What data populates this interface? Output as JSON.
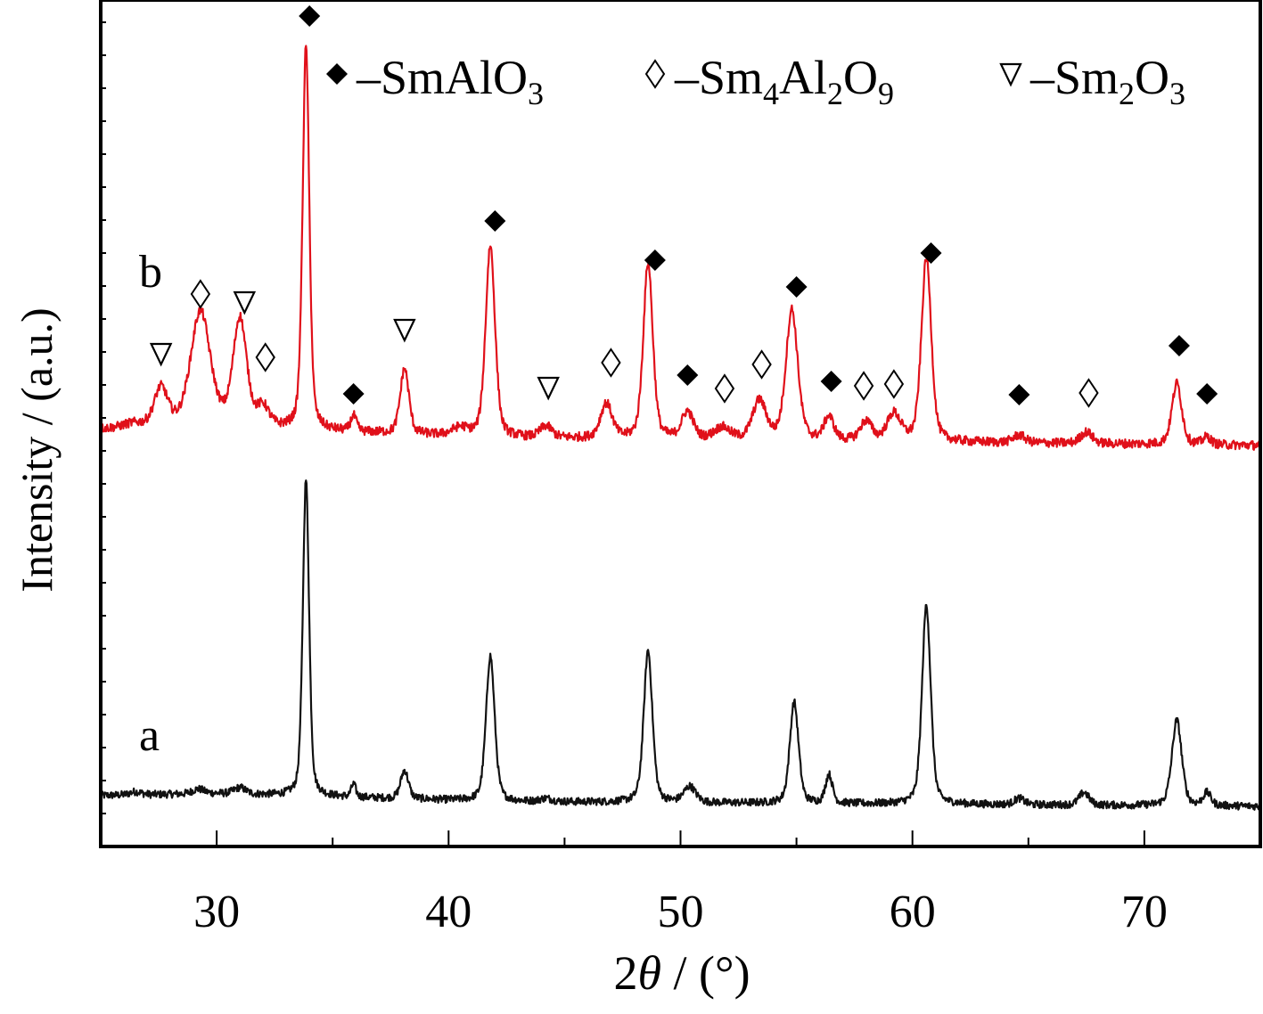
{
  "chart_data": {
    "type": "line",
    "title": "",
    "xlabel_parts": {
      "pre": "2",
      "theta": "θ",
      "post": " / (°)"
    },
    "ylabel": "Intensity / (a.u.)",
    "xlim": [
      25,
      75
    ],
    "x_ticks": [
      30,
      40,
      50,
      60,
      70
    ],
    "y_ticks_shown": false,
    "grid": false,
    "legend_position": "top-right",
    "legend": [
      {
        "marker": "filled-diamond",
        "prefix": "–",
        "parts": [
          [
            "SmAl",
            ""
          ],
          [
            "O",
            "3"
          ]
        ]
      },
      {
        "marker": "open-diamond",
        "prefix": "–",
        "parts": [
          [
            "Sm",
            "4"
          ],
          [
            "Al",
            "2"
          ],
          [
            "O",
            "9"
          ]
        ]
      },
      {
        "marker": "open-triangle-down",
        "prefix": "–",
        "parts": [
          [
            "Sm",
            "2"
          ],
          [
            "O",
            "3"
          ]
        ]
      }
    ],
    "series": [
      {
        "name": "a",
        "color": "#111111",
        "baseline": 0.0,
        "noise": 0.012,
        "peaks": [
          [
            26.5,
            0.01,
            0.3
          ],
          [
            29.2,
            0.015,
            0.3
          ],
          [
            31.0,
            0.02,
            0.3
          ],
          [
            33.85,
            1.0,
            0.16
          ],
          [
            35.9,
            0.04,
            0.12
          ],
          [
            38.1,
            0.09,
            0.2
          ],
          [
            41.8,
            0.46,
            0.22
          ],
          [
            44.2,
            0.01,
            0.3
          ],
          [
            48.6,
            0.48,
            0.22
          ],
          [
            50.4,
            0.05,
            0.3
          ],
          [
            54.9,
            0.32,
            0.22
          ],
          [
            56.4,
            0.09,
            0.18
          ],
          [
            60.6,
            0.63,
            0.22
          ],
          [
            64.6,
            0.02,
            0.25
          ],
          [
            67.4,
            0.04,
            0.25
          ],
          [
            71.4,
            0.27,
            0.25
          ],
          [
            72.7,
            0.04,
            0.2
          ]
        ]
      },
      {
        "name": "b",
        "color": "#e0101a",
        "baseline": 0.0,
        "noise": 0.012,
        "peaks": [
          [
            26.4,
            0.01,
            0.5
          ],
          [
            27.6,
            0.1,
            0.35
          ],
          [
            29.3,
            0.3,
            0.5
          ],
          [
            31.0,
            0.28,
            0.35
          ],
          [
            32.0,
            0.05,
            0.3
          ],
          [
            33.85,
            1.0,
            0.17
          ],
          [
            35.9,
            0.04,
            0.15
          ],
          [
            38.1,
            0.17,
            0.22
          ],
          [
            40.5,
            0.02,
            0.4
          ],
          [
            41.8,
            0.5,
            0.24
          ],
          [
            44.2,
            0.03,
            0.3
          ],
          [
            46.8,
            0.09,
            0.3
          ],
          [
            48.6,
            0.46,
            0.24
          ],
          [
            50.3,
            0.07,
            0.3
          ],
          [
            51.8,
            0.03,
            0.4
          ],
          [
            53.4,
            0.1,
            0.35
          ],
          [
            54.8,
            0.34,
            0.3
          ],
          [
            56.4,
            0.06,
            0.25
          ],
          [
            58.0,
            0.05,
            0.3
          ],
          [
            59.2,
            0.07,
            0.35
          ],
          [
            60.6,
            0.48,
            0.25
          ],
          [
            64.6,
            0.02,
            0.3
          ],
          [
            67.5,
            0.03,
            0.3
          ],
          [
            71.4,
            0.16,
            0.25
          ],
          [
            72.7,
            0.02,
            0.2
          ]
        ]
      }
    ],
    "series_labels": [
      "a",
      "b"
    ],
    "phase_markers": [
      {
        "x": 27.6,
        "symbol": "open-triangle-down"
      },
      {
        "x": 29.3,
        "symbol": "open-diamond"
      },
      {
        "x": 31.2,
        "symbol": "open-triangle-down"
      },
      {
        "x": 32.1,
        "symbol": "open-diamond"
      },
      {
        "x": 34.0,
        "symbol": "filled-diamond"
      },
      {
        "x": 35.9,
        "symbol": "filled-diamond"
      },
      {
        "x": 38.1,
        "symbol": "open-triangle-down"
      },
      {
        "x": 42.0,
        "symbol": "filled-diamond"
      },
      {
        "x": 44.3,
        "symbol": "open-triangle-down"
      },
      {
        "x": 47.0,
        "symbol": "open-diamond"
      },
      {
        "x": 48.9,
        "symbol": "filled-diamond"
      },
      {
        "x": 50.3,
        "symbol": "filled-diamond"
      },
      {
        "x": 51.9,
        "symbol": "open-diamond"
      },
      {
        "x": 53.5,
        "symbol": "open-diamond"
      },
      {
        "x": 55.0,
        "symbol": "filled-diamond"
      },
      {
        "x": 56.5,
        "symbol": "filled-diamond"
      },
      {
        "x": 57.9,
        "symbol": "open-diamond"
      },
      {
        "x": 59.2,
        "symbol": "open-diamond"
      },
      {
        "x": 60.8,
        "symbol": "filled-diamond"
      },
      {
        "x": 64.6,
        "symbol": "filled-diamond"
      },
      {
        "x": 67.6,
        "symbol": "open-diamond"
      },
      {
        "x": 71.5,
        "symbol": "filled-diamond"
      },
      {
        "x": 72.7,
        "symbol": "filled-diamond"
      }
    ]
  }
}
